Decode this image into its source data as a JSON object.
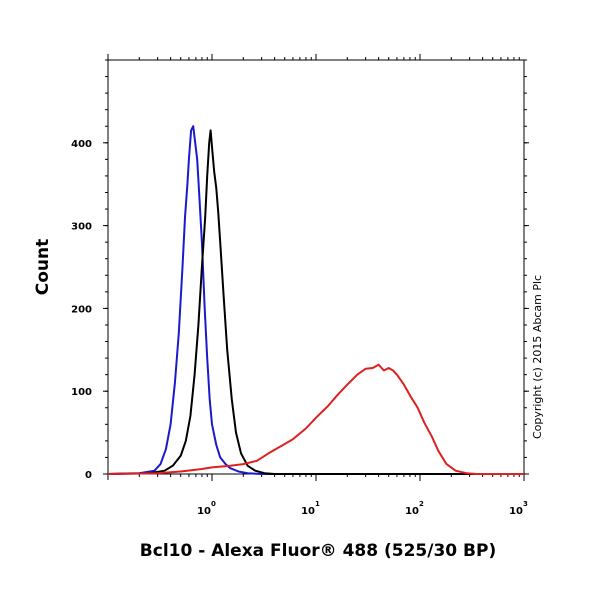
{
  "chart_data": {
    "type": "line",
    "xlabel": "Bcl10 - Alexa Fluor® 488 (525/30 BP)",
    "ylabel": "Count",
    "xscale": "log",
    "xlim": [
      0.1,
      1000
    ],
    "ylim": [
      0,
      500
    ],
    "x_ticks": [
      {
        "base": "10",
        "exp": "0",
        "value": 1
      },
      {
        "base": "10",
        "exp": "1",
        "value": 10
      },
      {
        "base": "10",
        "exp": "2",
        "value": 100
      },
      {
        "base": "10",
        "exp": "3",
        "value": 1000
      }
    ],
    "y_ticks": [
      "0",
      "100",
      "200",
      "300",
      "400"
    ],
    "y_tick_values": [
      0,
      100,
      200,
      300,
      400
    ],
    "grid": false,
    "legend": "none",
    "annotation": "Copyright (c) 2015 Abcam Plc",
    "series": [
      {
        "color": "#1a1acc",
        "points": [
          [
            0.1,
            0
          ],
          [
            0.2,
            1
          ],
          [
            0.28,
            4
          ],
          [
            0.32,
            12
          ],
          [
            0.36,
            30
          ],
          [
            0.4,
            60
          ],
          [
            0.44,
            110
          ],
          [
            0.48,
            170
          ],
          [
            0.52,
            250
          ],
          [
            0.55,
            310
          ],
          [
            0.58,
            350
          ],
          [
            0.6,
            380
          ],
          [
            0.63,
            415
          ],
          [
            0.66,
            420
          ],
          [
            0.69,
            400
          ],
          [
            0.72,
            380
          ],
          [
            0.76,
            330
          ],
          [
            0.8,
            280
          ],
          [
            0.85,
            200
          ],
          [
            0.9,
            140
          ],
          [
            0.95,
            90
          ],
          [
            1.0,
            60
          ],
          [
            1.1,
            35
          ],
          [
            1.2,
            20
          ],
          [
            1.35,
            12
          ],
          [
            1.5,
            7
          ],
          [
            1.8,
            3
          ],
          [
            2.2,
            1
          ],
          [
            3,
            0
          ],
          [
            1000,
            0
          ]
        ]
      },
      {
        "color": "#000000",
        "points": [
          [
            0.1,
            0
          ],
          [
            0.25,
            1
          ],
          [
            0.35,
            4
          ],
          [
            0.42,
            10
          ],
          [
            0.5,
            22
          ],
          [
            0.56,
            40
          ],
          [
            0.62,
            70
          ],
          [
            0.68,
            120
          ],
          [
            0.74,
            180
          ],
          [
            0.8,
            250
          ],
          [
            0.86,
            310
          ],
          [
            0.9,
            360
          ],
          [
            0.94,
            400
          ],
          [
            0.97,
            415
          ],
          [
            1.0,
            395
          ],
          [
            1.05,
            365
          ],
          [
            1.1,
            345
          ],
          [
            1.15,
            315
          ],
          [
            1.2,
            280
          ],
          [
            1.3,
            210
          ],
          [
            1.4,
            150
          ],
          [
            1.55,
            90
          ],
          [
            1.7,
            50
          ],
          [
            1.9,
            25
          ],
          [
            2.2,
            10
          ],
          [
            2.6,
            4
          ],
          [
            3.2,
            1
          ],
          [
            4,
            0
          ],
          [
            1000,
            0
          ]
        ]
      },
      {
        "color": "#dd2020",
        "points": [
          [
            0.1,
            0
          ],
          [
            0.3,
            1
          ],
          [
            0.5,
            3
          ],
          [
            0.8,
            6
          ],
          [
            1.0,
            8
          ],
          [
            1.5,
            10
          ],
          [
            2.0,
            12
          ],
          [
            2.7,
            16
          ],
          [
            3.5,
            25
          ],
          [
            4.5,
            33
          ],
          [
            6,
            42
          ],
          [
            8,
            55
          ],
          [
            10,
            68
          ],
          [
            13,
            82
          ],
          [
            16,
            95
          ],
          [
            20,
            108
          ],
          [
            25,
            120
          ],
          [
            30,
            127
          ],
          [
            35,
            128
          ],
          [
            40,
            132
          ],
          [
            45,
            125
          ],
          [
            50,
            128
          ],
          [
            55,
            125
          ],
          [
            60,
            120
          ],
          [
            70,
            108
          ],
          [
            80,
            95
          ],
          [
            95,
            80
          ],
          [
            110,
            62
          ],
          [
            130,
            45
          ],
          [
            150,
            28
          ],
          [
            180,
            12
          ],
          [
            220,
            4
          ],
          [
            280,
            1
          ],
          [
            350,
            0
          ],
          [
            1000,
            0
          ]
        ]
      }
    ]
  }
}
